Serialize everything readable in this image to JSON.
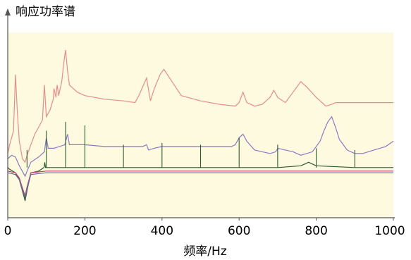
{
  "chart_data": {
    "type": "line",
    "title": "",
    "xlabel": "频率/Hz",
    "ylabel": "响应功率谱",
    "xlim": [
      0,
      1000
    ],
    "xticks": [
      0,
      200,
      400,
      600,
      800,
      1000
    ],
    "yticks_shown": false,
    "grid": false,
    "colors": {
      "plot_background": "#fdfae0",
      "axis": "#555555",
      "series": [
        "#e58d8d",
        "#8a7ac4",
        "#2f5a2f",
        "#c04060",
        "#6868a8"
      ]
    },
    "series": [
      {
        "values": [
          [
            0,
            35
          ],
          [
            5,
            40
          ],
          [
            15,
            48
          ],
          [
            20,
            80
          ],
          [
            25,
            58
          ],
          [
            30,
            42
          ],
          [
            38,
            32
          ],
          [
            45,
            30
          ],
          [
            50,
            34
          ],
          [
            60,
            40
          ],
          [
            70,
            46
          ],
          [
            80,
            50
          ],
          [
            90,
            54
          ],
          [
            95,
            74
          ],
          [
            100,
            56
          ],
          [
            110,
            60
          ],
          [
            118,
            66
          ],
          [
            120,
            72
          ],
          [
            125,
            67
          ],
          [
            128,
            74
          ],
          [
            132,
            68
          ],
          [
            140,
            76
          ],
          [
            145,
            86
          ],
          [
            150,
            94
          ],
          [
            155,
            82
          ],
          [
            160,
            74
          ],
          [
            180,
            70
          ],
          [
            200,
            68
          ],
          [
            250,
            66
          ],
          [
            300,
            65
          ],
          [
            330,
            64
          ],
          [
            340,
            68
          ],
          [
            350,
            73
          ],
          [
            360,
            78
          ],
          [
            370,
            65
          ],
          [
            380,
            72
          ],
          [
            395,
            80
          ],
          [
            405,
            83
          ],
          [
            420,
            78
          ],
          [
            450,
            68
          ],
          [
            500,
            65
          ],
          [
            550,
            63
          ],
          [
            590,
            62
          ],
          [
            600,
            64
          ],
          [
            610,
            70
          ],
          [
            620,
            64
          ],
          [
            640,
            62
          ],
          [
            660,
            63
          ],
          [
            680,
            67
          ],
          [
            690,
            71
          ],
          [
            700,
            67
          ],
          [
            720,
            64
          ],
          [
            740,
            70
          ],
          [
            760,
            76
          ],
          [
            775,
            73
          ],
          [
            800,
            67
          ],
          [
            825,
            62
          ],
          [
            840,
            63
          ],
          [
            850,
            64
          ],
          [
            900,
            64
          ],
          [
            950,
            64
          ],
          [
            1000,
            64
          ]
        ]
      },
      {
        "values": [
          [
            0,
            32
          ],
          [
            10,
            34
          ],
          [
            20,
            33
          ],
          [
            30,
            28
          ],
          [
            40,
            24
          ],
          [
            45,
            22
          ],
          [
            50,
            25
          ],
          [
            60,
            30
          ],
          [
            80,
            33
          ],
          [
            95,
            36
          ],
          [
            100,
            44
          ],
          [
            105,
            38
          ],
          [
            120,
            38
          ],
          [
            148,
            40
          ],
          [
            155,
            46
          ],
          [
            160,
            40
          ],
          [
            200,
            40
          ],
          [
            250,
            39
          ],
          [
            300,
            39
          ],
          [
            350,
            39
          ],
          [
            360,
            40
          ],
          [
            365,
            37
          ],
          [
            380,
            38
          ],
          [
            400,
            39
          ],
          [
            450,
            39
          ],
          [
            500,
            39
          ],
          [
            550,
            39
          ],
          [
            580,
            39
          ],
          [
            590,
            40
          ],
          [
            595,
            42
          ],
          [
            600,
            44
          ],
          [
            610,
            46
          ],
          [
            620,
            42
          ],
          [
            640,
            37
          ],
          [
            660,
            36
          ],
          [
            680,
            35
          ],
          [
            695,
            36
          ],
          [
            700,
            38
          ],
          [
            720,
            37
          ],
          [
            740,
            36
          ],
          [
            760,
            34
          ],
          [
            775,
            35
          ],
          [
            790,
            36
          ],
          [
            810,
            42
          ],
          [
            820,
            48
          ],
          [
            830,
            53
          ],
          [
            840,
            56
          ],
          [
            850,
            50
          ],
          [
            860,
            43
          ],
          [
            880,
            37
          ],
          [
            900,
            35
          ],
          [
            920,
            35
          ],
          [
            950,
            37
          ],
          [
            980,
            39
          ],
          [
            1000,
            42
          ]
        ]
      },
      {
        "values": [
          [
            0,
            27
          ],
          [
            5,
            26
          ],
          [
            20,
            24
          ],
          [
            30,
            20
          ],
          [
            40,
            12
          ],
          [
            45,
            8
          ],
          [
            50,
            14
          ],
          [
            60,
            24
          ],
          [
            80,
            25
          ],
          [
            94,
            27
          ],
          [
            96,
            30
          ],
          [
            98,
            27
          ],
          [
            150,
            27
          ],
          [
            200,
            27
          ],
          [
            300,
            27
          ],
          [
            400,
            27
          ],
          [
            500,
            27
          ],
          [
            600,
            27
          ],
          [
            700,
            27
          ],
          [
            760,
            28
          ],
          [
            780,
            30
          ],
          [
            800,
            28
          ],
          [
            900,
            27
          ],
          [
            1000,
            27
          ]
        ]
      },
      {
        "values": [
          [
            0,
            25
          ],
          [
            20,
            24
          ],
          [
            30,
            21
          ],
          [
            40,
            14
          ],
          [
            45,
            11
          ],
          [
            50,
            16
          ],
          [
            60,
            24
          ],
          [
            100,
            25
          ],
          [
            200,
            25
          ],
          [
            400,
            25
          ],
          [
            600,
            25
          ],
          [
            800,
            25
          ],
          [
            1000,
            25
          ]
        ]
      },
      {
        "values": [
          [
            0,
            24
          ],
          [
            20,
            23
          ],
          [
            30,
            20
          ],
          [
            40,
            13
          ],
          [
            45,
            10
          ],
          [
            50,
            15
          ],
          [
            60,
            23
          ],
          [
            100,
            24
          ],
          [
            300,
            24
          ],
          [
            600,
            24
          ],
          [
            900,
            24
          ],
          [
            1000,
            24
          ]
        ]
      }
    ],
    "harmonic_peaks": {
      "frequencies": [
        50,
        100,
        150,
        200,
        300,
        400,
        500,
        600,
        700,
        800,
        900
      ],
      "levels": [
        37,
        48,
        53,
        51,
        40,
        41,
        40,
        44,
        40,
        38,
        37
      ],
      "base": 27
    }
  }
}
